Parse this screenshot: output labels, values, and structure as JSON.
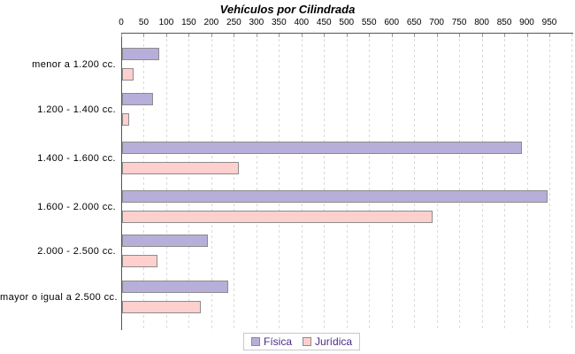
{
  "chart_data": {
    "type": "bar",
    "orientation": "horizontal",
    "title": "Vehículos por Cilindrada",
    "categories": [
      "menor a 1.200 cc.",
      "1.200 - 1.400 cc.",
      "1.400 - 1.600 cc.",
      "1.600 - 2.000 cc.",
      "2.000 - 2.500 cc.",
      "mayor o igual a 2.500 cc."
    ],
    "series": [
      {
        "name": "Física",
        "color": "#b7aed9",
        "values": [
          82,
          69,
          888,
          945,
          190,
          235
        ]
      },
      {
        "name": "Jurídica",
        "color": "#fdd0ce",
        "values": [
          25,
          16,
          259,
          689,
          78,
          174
        ]
      }
    ],
    "x_axis": {
      "min": 0,
      "max": 1000,
      "tick_step": 50,
      "labeled_ticks": [
        0,
        50,
        100,
        150,
        200,
        250,
        300,
        350,
        400,
        450,
        500,
        550,
        600,
        650,
        700,
        750,
        800,
        850,
        900,
        950
      ],
      "position": "top"
    },
    "grid": true,
    "legend_position": "bottom"
  },
  "colors": {
    "bar_border": "#8c8c8c",
    "axis_line": "#555555",
    "gridline": "#d9d9d9",
    "tick_mark": "#999999",
    "legend_text": "#4b2d83",
    "legend_border": "#c8c8c8",
    "title_text": "#000000",
    "background": "#ffffff"
  }
}
